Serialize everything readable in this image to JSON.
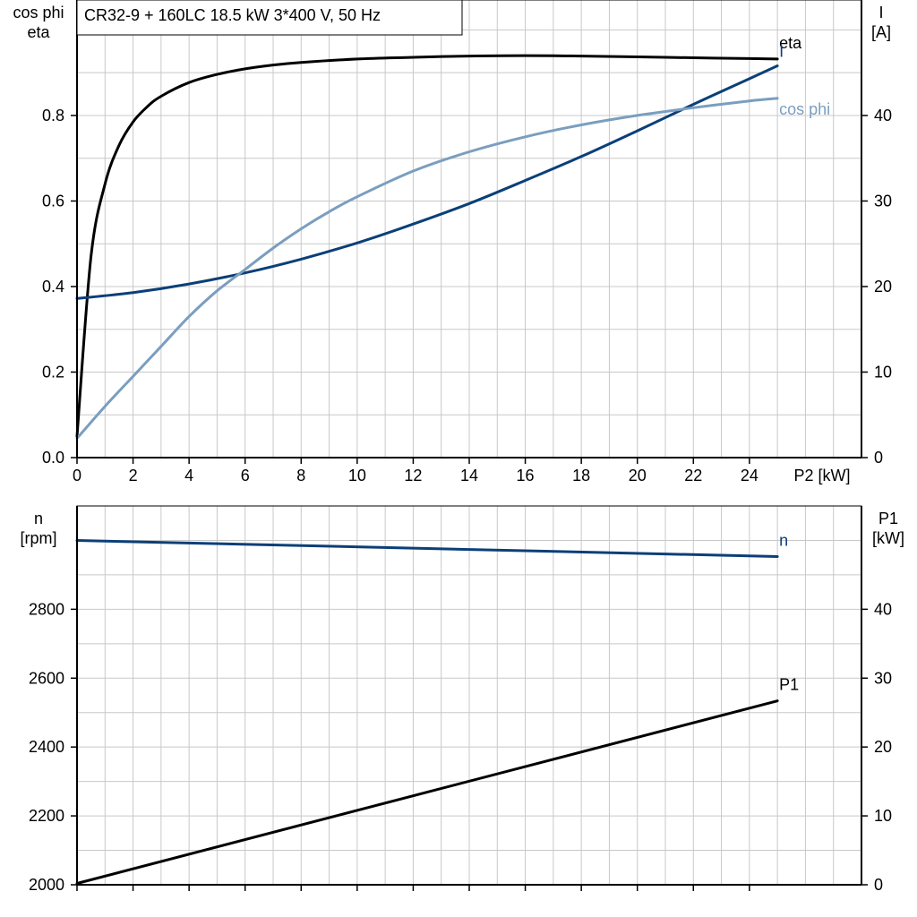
{
  "header": {
    "title": "CR32-9 + 160LC   18.5 kW   3*400 V, 50 Hz"
  },
  "colors": {
    "grid": "#c8c8c8",
    "black": "#000000",
    "dark_blue": "#0b3f78",
    "light_blue": "#7a9ebf"
  },
  "chart_data": [
    {
      "type": "line",
      "title": "CR32-9 + 160LC   18.5 kW   3*400 V, 50 Hz",
      "xlabel": "P2 [kW]",
      "xlim": [
        0,
        28
      ],
      "xticks": [
        0,
        2,
        4,
        6,
        8,
        10,
        12,
        14,
        16,
        18,
        20,
        22,
        24
      ],
      "xtick_labels": [
        "0",
        "2",
        "4",
        "6",
        "8",
        "10",
        "12",
        "14",
        "16",
        "18",
        "20",
        "22",
        "24"
      ],
      "ylabel_left_lines": [
        "cos phi",
        "eta"
      ],
      "ylim_left": [
        0,
        1.07
      ],
      "yticks_left": [
        0,
        0.2,
        0.4,
        0.6,
        0.8
      ],
      "ytick_labels_left": [
        "0.0",
        "0.2",
        "0.4",
        "0.6",
        "0.8"
      ],
      "ylabel_right_lines": [
        "I",
        "[A]"
      ],
      "ylim_right": [
        0,
        53.5
      ],
      "yticks_right": [
        0,
        10,
        20,
        30,
        40
      ],
      "ytick_labels_right": [
        "0",
        "10",
        "20",
        "30",
        "40"
      ],
      "grid": true,
      "series": [
        {
          "name": "eta",
          "axis": "left",
          "color": "black",
          "label_anchor": "start",
          "x": [
            0,
            0.5,
            1,
            1.5,
            2,
            2.5,
            3,
            4,
            5,
            6,
            7,
            8,
            10,
            12,
            14,
            16,
            18,
            20,
            22,
            24,
            25
          ],
          "y": [
            0.05,
            0.47,
            0.64,
            0.73,
            0.785,
            0.82,
            0.845,
            0.877,
            0.896,
            0.909,
            0.918,
            0.924,
            0.932,
            0.936,
            0.939,
            0.94,
            0.939,
            0.937,
            0.935,
            0.933,
            0.932
          ]
        },
        {
          "name": "I",
          "axis": "right",
          "color": "dark_blue",
          "label_anchor": "start",
          "x": [
            0,
            2,
            4,
            6,
            8,
            10,
            12,
            14,
            16,
            18,
            20,
            22,
            24,
            25
          ],
          "y": [
            18.6,
            19.3,
            20.3,
            21.6,
            23.2,
            25.1,
            27.3,
            29.7,
            32.4,
            35.2,
            38.2,
            41.3,
            44.3,
            45.8
          ]
        },
        {
          "name": "cos phi",
          "axis": "left",
          "color": "light_blue",
          "label_anchor": "start",
          "x": [
            0,
            1,
            2,
            3,
            4,
            5,
            6,
            7,
            8,
            9,
            10,
            12,
            14,
            16,
            18,
            20,
            22,
            24,
            25
          ],
          "y": [
            0.045,
            0.12,
            0.19,
            0.26,
            0.33,
            0.39,
            0.44,
            0.49,
            0.535,
            0.575,
            0.61,
            0.67,
            0.715,
            0.75,
            0.778,
            0.8,
            0.818,
            0.834,
            0.84
          ]
        }
      ]
    },
    {
      "type": "line",
      "title": "",
      "xlabel": "",
      "xlim": [
        0,
        28
      ],
      "xticks": [
        0,
        2,
        4,
        6,
        8,
        10,
        12,
        14,
        16,
        18,
        20,
        22,
        24
      ],
      "ylabel_left_lines": [
        "n",
        "[rpm]"
      ],
      "ylim_left": [
        2000,
        3100
      ],
      "yticks_left": [
        2000,
        2200,
        2400,
        2600,
        2800
      ],
      "ytick_labels_left": [
        "2000",
        "2200",
        "2400",
        "2600",
        "2800"
      ],
      "ylabel_right_lines": [
        "P1",
        "[kW]"
      ],
      "ylim_right": [
        0,
        55
      ],
      "yticks_right": [
        0,
        10,
        20,
        30,
        40
      ],
      "ytick_labels_right": [
        "0",
        "10",
        "20",
        "30",
        "40"
      ],
      "grid": true,
      "series": [
        {
          "name": "n",
          "axis": "left",
          "color": "dark_blue",
          "label_anchor": "start",
          "x": [
            0,
            25
          ],
          "y": [
            3000,
            2953
          ]
        },
        {
          "name": "P1",
          "axis": "right",
          "color": "black",
          "label_anchor": "start",
          "x": [
            0,
            25
          ],
          "y": [
            0.2,
            26.7
          ]
        }
      ]
    }
  ]
}
